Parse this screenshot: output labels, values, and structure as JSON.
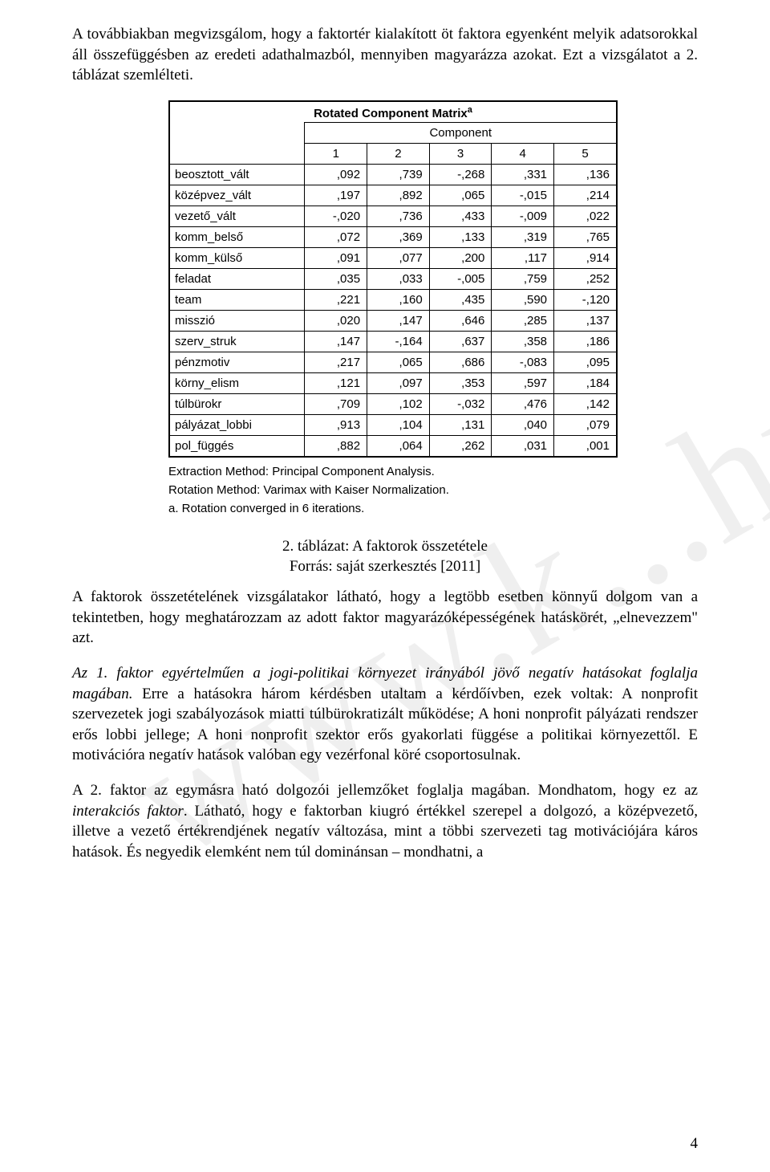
{
  "watermark": "www.k...hu",
  "para_intro": "A továbbiakban megvizsgálom, hogy a faktortér kialakított öt faktora egyenként melyik adatsorokkal áll összefüggésben az eredeti adathalmazból, mennyiben magyarázza azokat. Ezt a vizsgálatot a 2. táblázat szemlélteti.",
  "table": {
    "title_main": "Rotated Component Matrix",
    "title_sup": "a",
    "super_header": "Component",
    "col_headers": [
      "1",
      "2",
      "3",
      "4",
      "5"
    ],
    "rows": [
      {
        "label": "beosztott_vált",
        "vals": [
          ",092",
          ",739",
          "-,268",
          ",331",
          ",136"
        ]
      },
      {
        "label": "középvez_vált",
        "vals": [
          ",197",
          ",892",
          ",065",
          "-,015",
          ",214"
        ]
      },
      {
        "label": "vezető_vált",
        "vals": [
          "-,020",
          ",736",
          ",433",
          "-,009",
          ",022"
        ]
      },
      {
        "label": "komm_belső",
        "vals": [
          ",072",
          ",369",
          ",133",
          ",319",
          ",765"
        ]
      },
      {
        "label": "komm_külső",
        "vals": [
          ",091",
          ",077",
          ",200",
          ",117",
          ",914"
        ]
      },
      {
        "label": "feladat",
        "vals": [
          ",035",
          ",033",
          "-,005",
          ",759",
          ",252"
        ]
      },
      {
        "label": "team",
        "vals": [
          ",221",
          ",160",
          ",435",
          ",590",
          "-,120"
        ]
      },
      {
        "label": "misszió",
        "vals": [
          ",020",
          ",147",
          ",646",
          ",285",
          ",137"
        ]
      },
      {
        "label": "szerv_struk",
        "vals": [
          ",147",
          "-,164",
          ",637",
          ",358",
          ",186"
        ]
      },
      {
        "label": "pénzmotiv",
        "vals": [
          ",217",
          ",065",
          ",686",
          "-,083",
          ",095"
        ]
      },
      {
        "label": "körny_elism",
        "vals": [
          ",121",
          ",097",
          ",353",
          ",597",
          ",184"
        ]
      },
      {
        "label": "túlbürokr",
        "vals": [
          ",709",
          ",102",
          "-,032",
          ",476",
          ",142"
        ]
      },
      {
        "label": "pályázat_lobbi",
        "vals": [
          ",913",
          ",104",
          ",131",
          ",040",
          ",079"
        ]
      },
      {
        "label": "pol_függés",
        "vals": [
          ",882",
          ",064",
          ",262",
          ",031",
          ",001"
        ]
      }
    ],
    "notes": [
      "Extraction Method: Principal Component Analysis.",
      " Rotation Method: Varimax with Kaiser Normalization.",
      "a. Rotation converged in 6 iterations."
    ]
  },
  "caption_line1": "2. táblázat: A faktorok összetétele",
  "caption_line2": "Forrás: saját szerkesztés [2011]",
  "para_after_caption": "A faktorok összetételének vizsgálatakor látható, hogy a legtöbb esetben könnyű dolgom van a tekintetben, hogy meghatározzam az adott faktor magyarázóképességének hatáskörét, „elnevezzem\" azt.",
  "para_f1_italic": "Az 1. faktor egyértelműen a jogi-politikai környezet irányából jövő negatív hatásokat foglalja magában.",
  "para_f1_rest": " Erre a hatásokra három kérdésben utaltam a kérdőívben, ezek voltak: A nonprofit szervezetek jogi szabályozások miatti túlbürokratizált működése; A honi nonprofit pályázati rendszer erős lobbi jellege; A honi nonprofit szektor erős gyakorlati függése a politikai környezettől. E motivációra negatív hatások valóban egy vezérfonal köré csoportosulnak.",
  "para_f2_lead": " A 2. faktor az egymásra ható dolgozói jellemzőket foglalja magában. Mondhatom, hogy ez az ",
  "para_f2_italic": "interakciós faktor",
  "para_f2_rest": ". Látható, hogy e faktorban kiugró értékkel szerepel a dolgozó, a középvezető, illetve a vezető értékrendjének negatív változása, mint a többi szervezeti tag motivációjára káros hatások. És negyedik elemként nem túl dominánsan – mondhatni, a",
  "page_number": "4"
}
